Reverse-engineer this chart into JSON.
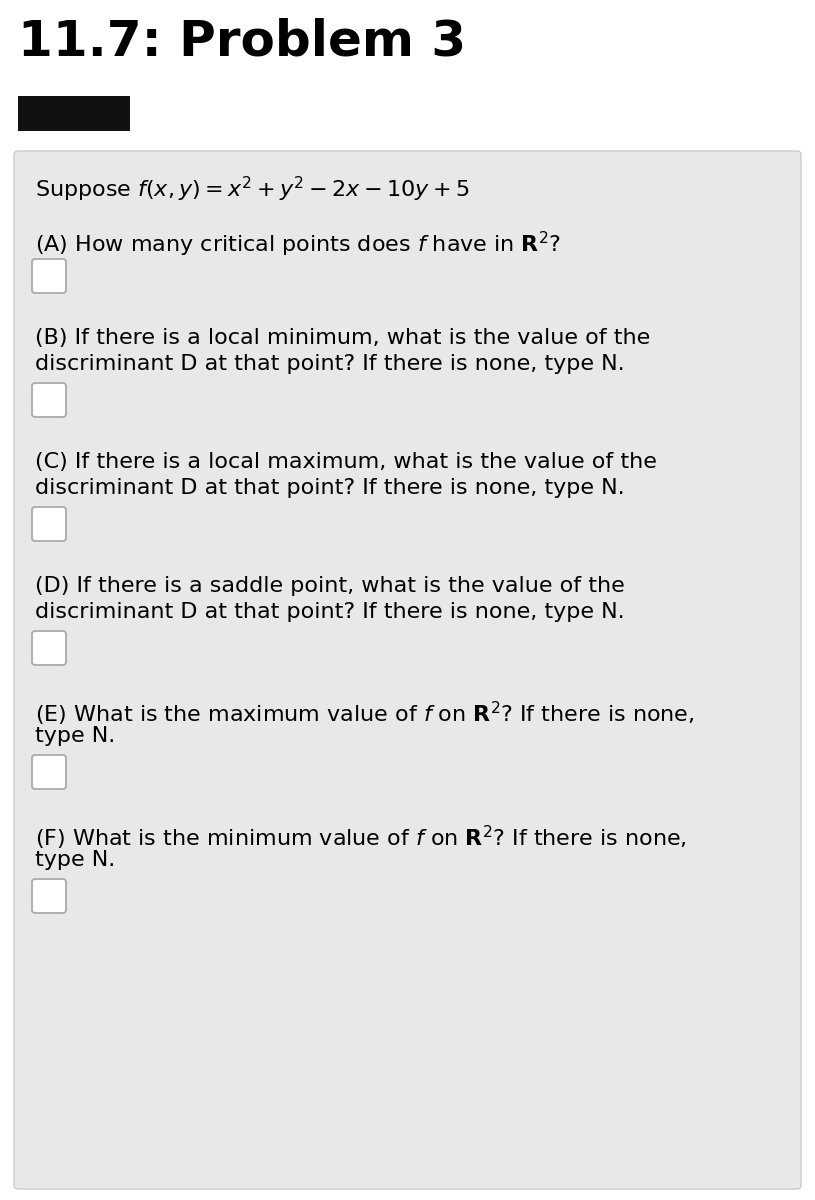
{
  "title": "11.7: Problem 3",
  "title_fontsize": 36,
  "title_fontweight": "bold",
  "bg_color": "#ffffff",
  "panel_color": "#e8e8e8",
  "panel_edge_color": "#cccccc",
  "black_bar_color": "#111111",
  "box_facecolor": "#ffffff",
  "box_edgecolor": "#aaaaaa",
  "suppose_text_plain": "Suppose ",
  "suppose_text_math": "$f(x, y) = x^2 + y^2 - 2x - 10y + 5$",
  "text_fontsize": 16,
  "suppose_fontsize": 16,
  "items": [
    {
      "lines": [
        "(A) How many critical points does $f$ have in $\\mathbf{R}^2$?"
      ],
      "nlines": 1
    },
    {
      "lines": [
        "(B) If there is a local minimum, what is the value of the",
        "discriminant D at that point? If there is none, type N."
      ],
      "nlines": 2
    },
    {
      "lines": [
        "(C) If there is a local maximum, what is the value of the",
        "discriminant D at that point? If there is none, type N."
      ],
      "nlines": 2
    },
    {
      "lines": [
        "(D) If there is a saddle point, what is the value of the",
        "discriminant D at that point? If there is none, type N."
      ],
      "nlines": 2
    },
    {
      "lines": [
        "(E) What is the maximum value of $f$ on $\\mathbf{R}^2$? If there is none,",
        "type N."
      ],
      "nlines": 2
    },
    {
      "lines": [
        "(F) What is the minimum value of $f$ on $\\mathbf{R}^2$? If there is none,",
        "type N."
      ],
      "nlines": 2
    }
  ]
}
